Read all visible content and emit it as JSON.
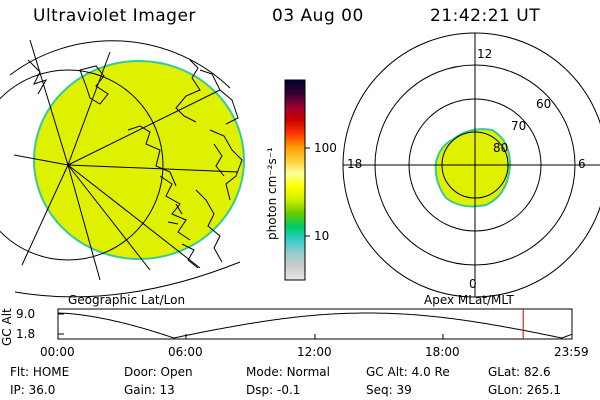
{
  "header": {
    "instrument": "Ultraviolet Imager",
    "date": "03 Aug 00",
    "time": "21:42:21 UT"
  },
  "colors": {
    "aurora_fill": "#dff000",
    "aurora_edge": "#33cc99",
    "line": "#000000",
    "time_marker": "#cc0000"
  },
  "colorbar": {
    "label": "photon cm⁻²s⁻¹",
    "ticks": [
      "100",
      "10"
    ],
    "stops": [
      "#000033",
      "#330033",
      "#990033",
      "#cc0000",
      "#ff3300",
      "#ff9900",
      "#ffcc33",
      "#ffff99",
      "#ffff00",
      "#ccee00",
      "#66cc00",
      "#00cc66",
      "#33cccc",
      "#99cccc",
      "#cccccc",
      "#e6e6e6"
    ]
  },
  "left_panel": {
    "label": "Geographic Lat/Lon"
  },
  "right_panel": {
    "label": "Apex MLat/MLT",
    "mlt_labels": [
      "12",
      "18",
      "6",
      "0"
    ],
    "mlat_labels": [
      "60",
      "70",
      "80"
    ]
  },
  "altitude_plot": {
    "ylabel": "GC Alt",
    "y_ticks": [
      "9.0",
      "1.8"
    ],
    "x_ticks": [
      "00:00",
      "06:00",
      "12:00",
      "18:00",
      "23:59"
    ],
    "current_time_fraction": 0.905
  },
  "info": {
    "flt_label": "Flt:",
    "flt_value": "HOME",
    "ip_label": "IP:",
    "ip_value": "36.0",
    "door_label": "Door:",
    "door_value": "Open",
    "gain_label": "Gain:",
    "gain_value": "13",
    "mode_label": "Mode:",
    "mode_value": "Normal",
    "dsp_label": "Dsp:",
    "dsp_value": "-0.1",
    "gcalt_label": "GC Alt:",
    "gcalt_value": "4.0 Re",
    "seq_label": "Seq:",
    "seq_value": "39",
    "glat_label": "GLat:",
    "glat_value": "82.6",
    "glon_label": "GLon:",
    "glon_value": "265.1"
  }
}
